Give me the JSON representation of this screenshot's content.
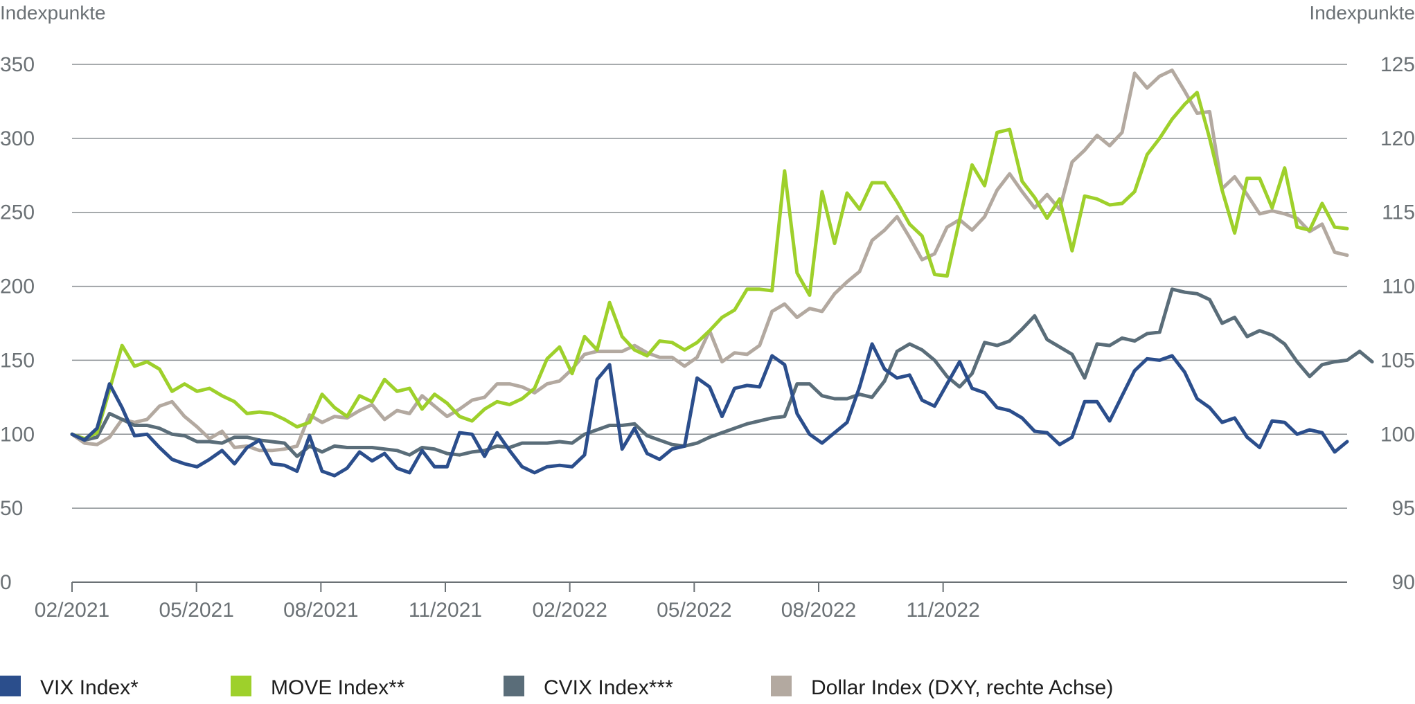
{
  "chart_data": {
    "type": "line",
    "y_axis_left_label": "Indexpunkte",
    "y_axis_right_label": "Indexpunkte",
    "ylim_left": [
      0,
      350
    ],
    "ylim_right": [
      90,
      125
    ],
    "yticks_left": [
      "0",
      "50",
      "100",
      "150",
      "200",
      "250",
      "300",
      "350"
    ],
    "yticks_right": [
      "90",
      "95",
      "100",
      "105",
      "110",
      "115",
      "120",
      "125"
    ],
    "x_tick_labels": [
      "02/2021",
      "05/2021",
      "08/2021",
      "11/2021",
      "02/2022",
      "05/2022",
      "08/2022",
      "11/2022"
    ],
    "grid": true,
    "legend_position": "bottom",
    "series": [
      {
        "name": "VIX Index*",
        "axis": "left",
        "color": "#2b4e8c",
        "values": [
          100,
          96,
          104,
          134,
          118,
          99,
          100,
          91,
          83,
          80,
          78,
          83,
          89,
          80,
          91,
          96,
          80,
          79,
          75,
          99,
          75,
          72,
          77,
          88,
          82,
          87,
          77,
          74,
          89,
          78,
          78,
          101,
          100,
          85,
          101,
          89,
          78,
          74,
          78,
          79,
          78,
          86,
          137,
          147,
          90,
          104,
          87,
          83,
          90,
          92,
          138,
          132,
          112,
          131,
          133,
          132,
          153,
          147,
          114,
          100,
          94,
          101,
          108,
          132,
          161,
          144,
          138,
          140,
          123,
          119,
          134,
          149,
          131,
          128,
          118,
          116,
          111,
          102,
          101,
          93,
          98,
          122,
          122,
          109,
          126,
          143,
          151,
          150,
          153,
          142,
          124,
          118,
          108,
          111,
          98,
          91,
          109,
          108,
          100,
          103,
          101,
          88,
          95
        ]
      },
      {
        "name": "MOVE Index**",
        "axis": "left",
        "color": "#9ed02b",
        "values": [
          100,
          97,
          101,
          130,
          160,
          146,
          149,
          144,
          129,
          134,
          129,
          131,
          126,
          122,
          114,
          115,
          114,
          110,
          105,
          108,
          127,
          118,
          112,
          126,
          122,
          137,
          129,
          131,
          117,
          127,
          121,
          112,
          109,
          117,
          122,
          120,
          124,
          131,
          151,
          159,
          141,
          166,
          157,
          189,
          166,
          157,
          153,
          163,
          162,
          157,
          162,
          170,
          179,
          184,
          198,
          198,
          197,
          278,
          209,
          194,
          264,
          229,
          263,
          252,
          270,
          270,
          257,
          242,
          234,
          208,
          207,
          245,
          282,
          268,
          304,
          306,
          271,
          260,
          246,
          259,
          224,
          261,
          259,
          255,
          256,
          264,
          289,
          300,
          313,
          323,
          331,
          300,
          265,
          236,
          273,
          273,
          253,
          280,
          240,
          238,
          256,
          240,
          239
        ]
      },
      {
        "name": "CVIX Index***",
        "axis": "left",
        "color": "#5a6d79",
        "values": [
          100,
          96,
          98,
          114,
          110,
          106,
          106,
          104,
          100,
          99,
          95,
          95,
          94,
          98,
          98,
          96,
          95,
          94,
          85,
          92,
          88,
          92,
          91,
          91,
          91,
          90,
          89,
          86,
          91,
          90,
          87,
          86,
          88,
          89,
          92,
          91,
          94,
          94,
          94,
          95,
          94,
          100,
          103,
          106,
          106,
          107,
          99,
          96,
          93,
          92,
          94,
          98,
          101,
          104,
          107,
          109,
          111,
          112,
          134,
          134,
          126,
          124,
          124,
          127,
          125,
          136,
          156,
          161,
          157,
          150,
          139,
          132,
          141,
          162,
          160,
          163,
          171,
          180,
          164,
          159,
          154,
          138,
          161,
          160,
          165,
          163,
          168,
          169,
          198,
          196,
          195,
          191,
          175,
          179,
          166,
          170,
          167,
          161,
          149,
          139,
          147,
          149,
          150,
          156,
          149
        ]
      },
      {
        "name": "Dollar Index (DXY, rechte Achse)",
        "axis": "right",
        "color": "#b3a9a0",
        "values": [
          100,
          99.4,
          99.3,
          99.8,
          101.0,
          100.8,
          101.0,
          101.9,
          102.2,
          101.2,
          100.5,
          99.7,
          100.2,
          99.1,
          99.2,
          98.9,
          98.9,
          99.0,
          99.2,
          101.3,
          100.8,
          101.2,
          101.1,
          101.6,
          102.0,
          101.0,
          101.6,
          101.4,
          102.6,
          101.9,
          101.2,
          101.7,
          102.3,
          102.5,
          103.4,
          103.4,
          103.2,
          102.8,
          103.4,
          103.6,
          104.4,
          105.4,
          105.6,
          105.6,
          105.6,
          106.0,
          105.5,
          105.2,
          105.2,
          104.6,
          105.2,
          107.0,
          104.9,
          105.5,
          105.4,
          106.0,
          108.3,
          108.8,
          107.9,
          108.5,
          108.3,
          109.5,
          110.3,
          111.0,
          113.1,
          113.8,
          114.7,
          113.3,
          111.8,
          112.2,
          114.0,
          114.5,
          113.8,
          114.7,
          116.5,
          117.6,
          116.4,
          115.3,
          116.2,
          115.2,
          118.4,
          119.2,
          120.2,
          119.5,
          120.4,
          124.4,
          123.4,
          124.2,
          124.6,
          123.2,
          121.7,
          121.8,
          116.6,
          117.4,
          116.2,
          114.9,
          115.1,
          114.9,
          114.6,
          113.7,
          114.2,
          112.3,
          112.1
        ]
      }
    ]
  },
  "legend": {
    "items": [
      {
        "label": "VIX Index*",
        "color": "#2b4e8c"
      },
      {
        "label": "MOVE Index**",
        "color": "#9ed02b"
      },
      {
        "label": "CVIX Index***",
        "color": "#5a6d79"
      },
      {
        "label": "Dollar Index (DXY, rechte Achse)",
        "color": "#b3a9a0"
      }
    ]
  }
}
